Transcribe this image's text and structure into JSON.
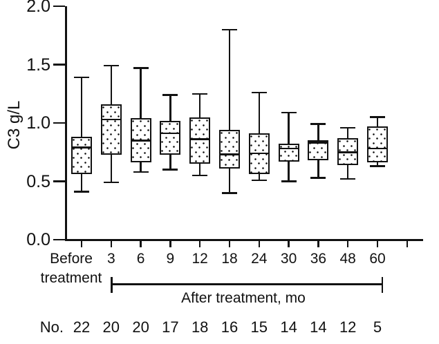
{
  "chart_data": {
    "type": "boxplot",
    "title": "",
    "ylabel": "C3 g/L",
    "bracket_label": "After treatment, mo",
    "ylim": [
      0.0,
      2.0
    ],
    "yticks": [
      0.0,
      0.5,
      1.0,
      1.5,
      2.0
    ],
    "grid": false,
    "ink_color": "#111111",
    "background_color": "#ffffff",
    "categories": [
      "Before treatment",
      "3",
      "6",
      "9",
      "12",
      "18",
      "24",
      "30",
      "36",
      "48",
      "60"
    ],
    "sample_size_label": "No.",
    "sample_sizes": [
      22,
      20,
      20,
      17,
      18,
      16,
      15,
      14,
      14,
      12,
      5
    ],
    "boxes": [
      {
        "category": "Before treatment",
        "whisker_low": 0.41,
        "q1": 0.56,
        "median": 0.79,
        "q3": 0.88,
        "whisker_high": 1.39
      },
      {
        "category": "3",
        "whisker_low": 0.49,
        "q1": 0.73,
        "median": 1.03,
        "q3": 1.16,
        "whisker_high": 1.49
      },
      {
        "category": "6",
        "whisker_low": 0.58,
        "q1": 0.66,
        "median": 0.85,
        "q3": 1.04,
        "whisker_high": 1.47
      },
      {
        "category": "9",
        "whisker_low": 0.6,
        "q1": 0.73,
        "median": 0.91,
        "q3": 1.02,
        "whisker_high": 1.24
      },
      {
        "category": "12",
        "whisker_low": 0.55,
        "q1": 0.65,
        "median": 0.86,
        "q3": 1.05,
        "whisker_high": 1.25
      },
      {
        "category": "18",
        "whisker_low": 0.4,
        "q1": 0.61,
        "median": 0.73,
        "q3": 0.94,
        "whisker_high": 1.8
      },
      {
        "category": "24",
        "whisker_low": 0.51,
        "q1": 0.56,
        "median": 0.74,
        "q3": 0.91,
        "whisker_high": 1.26
      },
      {
        "category": "30",
        "whisker_low": 0.5,
        "q1": 0.67,
        "median": 0.78,
        "q3": 0.82,
        "whisker_high": 1.09
      },
      {
        "category": "36",
        "whisker_low": 0.53,
        "q1": 0.68,
        "median": 0.83,
        "q3": 0.85,
        "whisker_high": 0.99
      },
      {
        "category": "48",
        "whisker_low": 0.52,
        "q1": 0.64,
        "median": 0.75,
        "q3": 0.87,
        "whisker_high": 0.96
      },
      {
        "category": "60",
        "whisker_low": 0.63,
        "q1": 0.66,
        "median": 0.78,
        "q3": 0.97,
        "whisker_high": 1.05
      }
    ]
  }
}
